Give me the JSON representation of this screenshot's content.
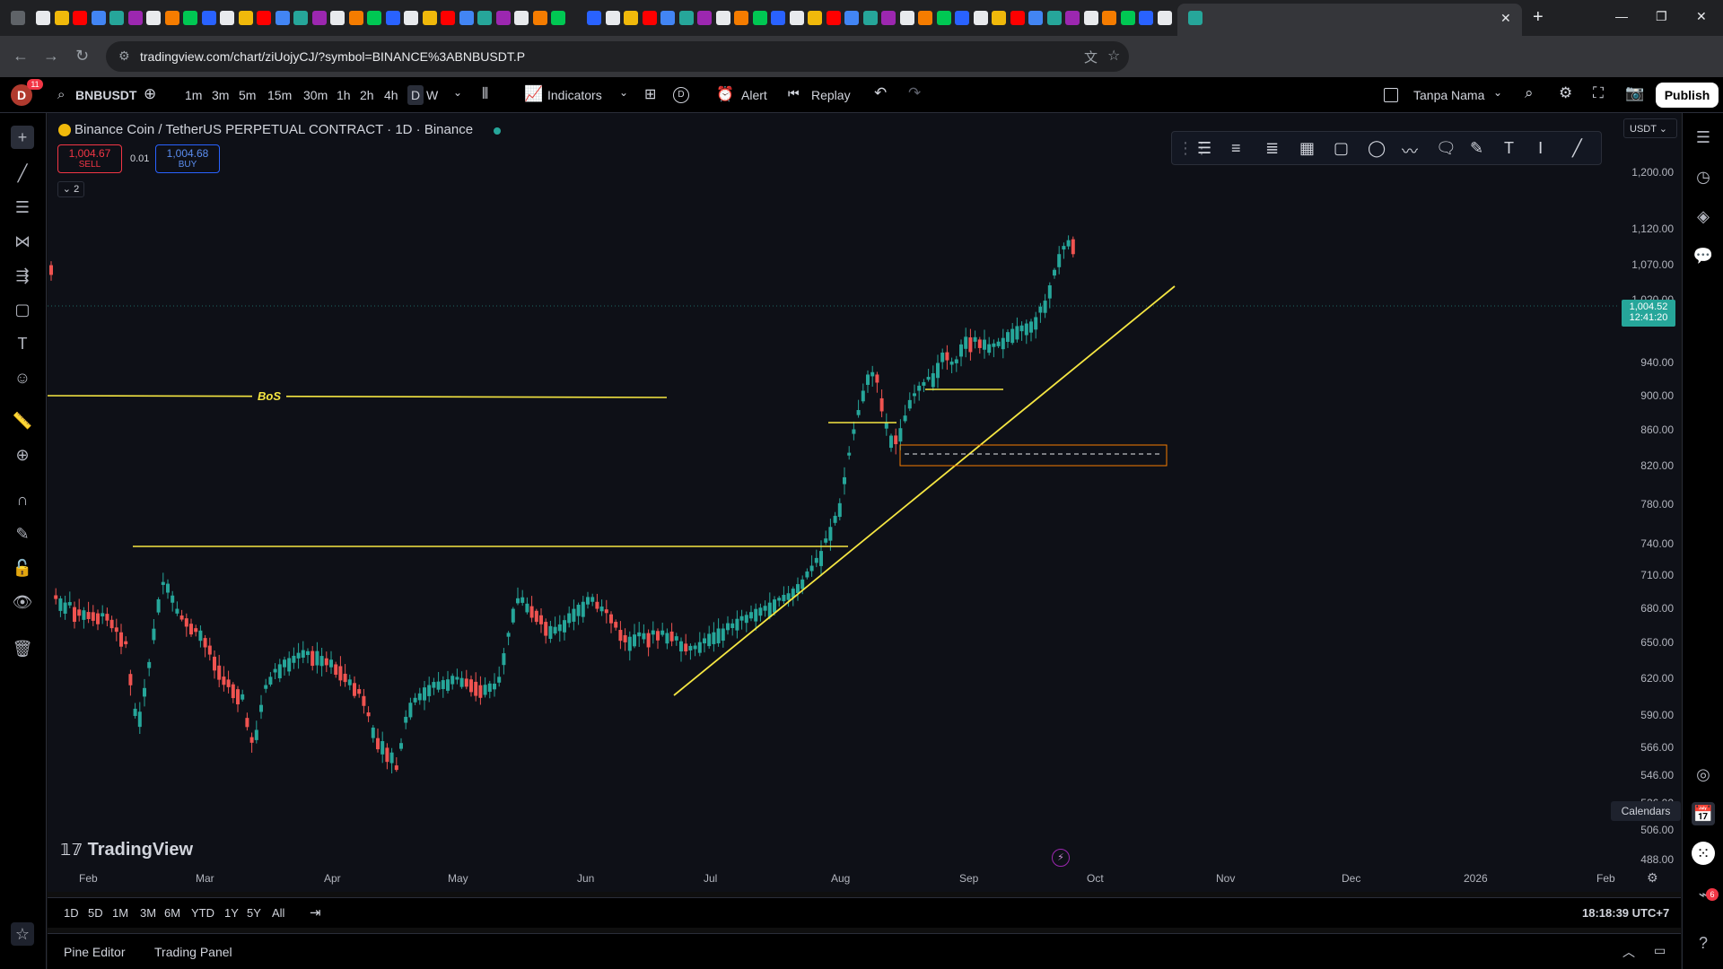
{
  "browser": {
    "url": "tradingview.com/chart/ziUojyCJ/?symbol=BINANCE%3ABNBUSDT.P",
    "tab_close": "✕",
    "new_tab": "+",
    "window_controls": [
      "—",
      "❐",
      "✕"
    ]
  },
  "header": {
    "avatar_letter": "D",
    "avatar_badge": "11",
    "symbol": "BNBUSDT",
    "intervals": [
      "1m",
      "3m",
      "5m",
      "15m",
      "30m",
      "1h",
      "2h",
      "4h",
      "D",
      "W"
    ],
    "active_interval": "D",
    "indicators_label": "Indicators",
    "alert_label": "Alert",
    "replay_label": "Replay",
    "layout_name": "Tanpa Nama",
    "publish_label": "Publish",
    "d_badge": "D"
  },
  "legend": {
    "title": "Binance Coin / TetherUS PERPETUAL CONTRACT · 1D · Binance",
    "sell_price": "1,004.67",
    "sell_label": "SELL",
    "spread": "0.01",
    "buy_price": "1,004.68",
    "buy_label": "BUY",
    "indicators_count": "2",
    "currency": "USDT"
  },
  "chart_data": {
    "type": "candlestick",
    "price_ticks": [
      "1,200.00",
      "1,120.00",
      "1,070.00",
      "1,020.00",
      "940.00",
      "900.00",
      "860.00",
      "820.00",
      "780.00",
      "740.00",
      "710.00",
      "680.00",
      "650.00",
      "620.00",
      "590.00",
      "566.00",
      "546.00",
      "526.00",
      "506.00",
      "488.00"
    ],
    "time_ticks": [
      "Feb",
      "Mar",
      "Apr",
      "May",
      "Jun",
      "Jul",
      "Aug",
      "Sep",
      "Oct",
      "Nov",
      "Dec",
      "2026",
      "Feb"
    ],
    "last_price": "1,004.52",
    "countdown": "12:41:20",
    "annotation": "BoS",
    "watermark": "TradingView",
    "colors": {
      "up": "#26a69a",
      "down": "#ef5350",
      "lines": "#f5e642",
      "box": "#f57c00"
    }
  },
  "bottom": {
    "ranges": [
      "1D",
      "5D",
      "1M",
      "3M",
      "6M",
      "YTD",
      "1Y",
      "5Y",
      "All"
    ],
    "clock": "18:18:39 UTC+7",
    "tabs": [
      "Pine Editor",
      "Trading Panel"
    ],
    "tooltip": "Calendars",
    "notif_badge": "6"
  }
}
